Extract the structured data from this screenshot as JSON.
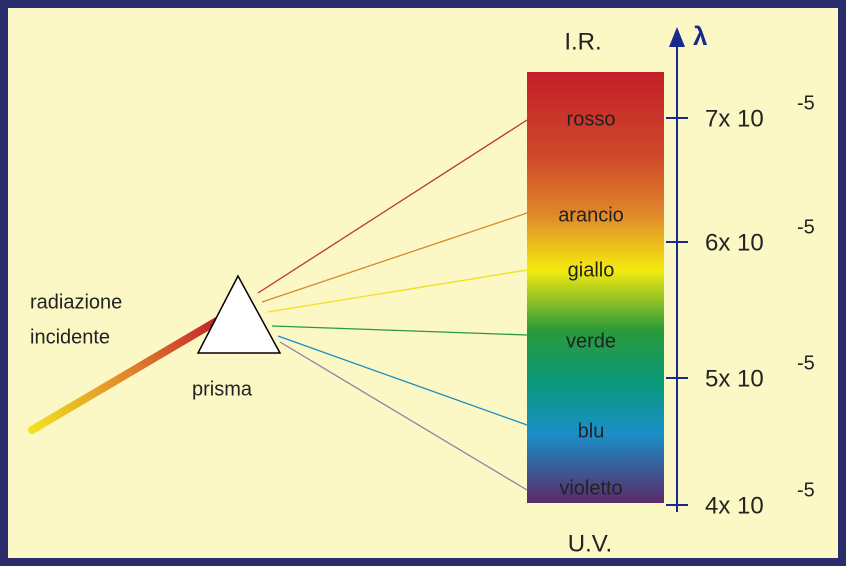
{
  "incident": {
    "lines": [
      "radiazione",
      "incidente"
    ]
  },
  "prism": {
    "label": "prisma"
  },
  "spectrum": {
    "top_label": "I.R.",
    "bottom_label": "U.V.",
    "colors": [
      "rosso",
      "arancio",
      "giallo",
      "verde",
      "blu",
      "violetto"
    ]
  },
  "axis": {
    "symbol": "λ",
    "ticks": [
      {
        "base": "7x 10",
        "exponent": "-5"
      },
      {
        "base": "6x 10",
        "exponent": "-5"
      },
      {
        "base": "5x 10",
        "exponent": "-5"
      },
      {
        "base": "4x 10",
        "exponent": "-5"
      }
    ]
  }
}
